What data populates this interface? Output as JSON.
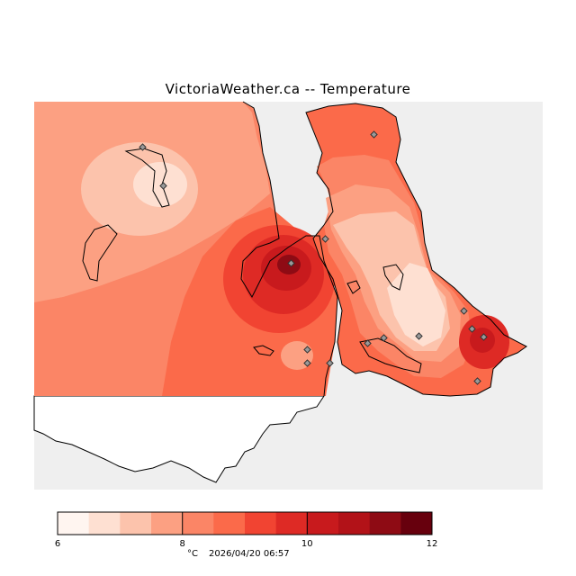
{
  "title": "VictoriaWeather.ca -- Temperature",
  "legend": {
    "unit": "°C",
    "timestamp": "2026/04/20 06:57",
    "ticks": [
      "6",
      "8",
      "10",
      "12"
    ],
    "colors": [
      "#fff5f0",
      "#fee0d2",
      "#fcc3ac",
      "#fca082",
      "#fb8566",
      "#fb6a4a",
      "#f14432",
      "#de2a25",
      "#c81a1d",
      "#b21218",
      "#8e0b14",
      "#67000d"
    ]
  },
  "map": {
    "water_color": "#efefef",
    "land_outside_color": "#ffffff",
    "stations": [
      {
        "id": "s1"
      },
      {
        "id": "s2"
      },
      {
        "id": "s3"
      },
      {
        "id": "s4"
      },
      {
        "id": "s5"
      },
      {
        "id": "s6"
      },
      {
        "id": "s7"
      },
      {
        "id": "s8"
      },
      {
        "id": "s9"
      },
      {
        "id": "s10"
      },
      {
        "id": "s11"
      },
      {
        "id": "s12"
      },
      {
        "id": "s13"
      },
      {
        "id": "s14"
      },
      {
        "id": "s15"
      }
    ]
  }
}
